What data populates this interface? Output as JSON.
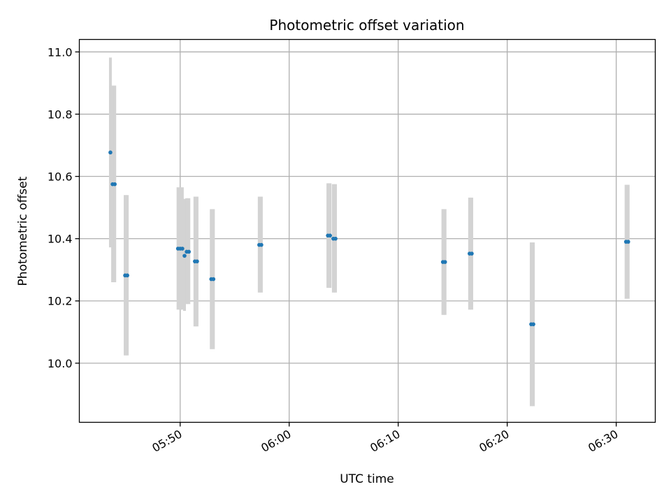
{
  "chart_data": {
    "type": "scatter",
    "title": "Photometric offset variation",
    "xlabel": "UTC time",
    "ylabel": "Photometric offset",
    "grid": true,
    "xlim": [
      "05:40:45",
      "06:33:35"
    ],
    "ylim": [
      9.81,
      11.04
    ],
    "xticks": [
      "05:50",
      "06:00",
      "06:10",
      "06:20",
      "06:30"
    ],
    "yticks": [
      10.0,
      10.2,
      10.4,
      10.6,
      10.8,
      11.0
    ],
    "ytick_labels": [
      "10.0",
      "10.2",
      "10.4",
      "10.6",
      "10.8",
      "11.0"
    ],
    "point_color": "#1f77b4",
    "errorbar_color": "#d3d3d3",
    "points": [
      {
        "t": "05:43:36",
        "y": 10.677,
        "ylow": 10.372,
        "yhigh": 10.982
      },
      {
        "t": "05:43:48",
        "y": 10.575,
        "ylow": 10.26,
        "yhigh": 10.892
      },
      {
        "t": "05:44:00",
        "y": 10.575,
        "ylow": 10.26,
        "yhigh": 10.892
      },
      {
        "t": "05:44:57",
        "y": 10.282,
        "ylow": 10.025,
        "yhigh": 10.54
      },
      {
        "t": "05:45:09",
        "y": 10.282,
        "ylow": 10.025,
        "yhigh": 10.54
      },
      {
        "t": "05:49:48",
        "y": 10.368,
        "ylow": 10.172,
        "yhigh": 10.565
      },
      {
        "t": "05:50:00",
        "y": 10.368,
        "ylow": 10.172,
        "yhigh": 10.565
      },
      {
        "t": "05:50:12",
        "y": 10.368,
        "ylow": 10.172,
        "yhigh": 10.565
      },
      {
        "t": "05:50:24",
        "y": 10.345,
        "ylow": 10.168,
        "yhigh": 10.528
      },
      {
        "t": "05:50:36",
        "y": 10.358,
        "ylow": 10.19,
        "yhigh": 10.53
      },
      {
        "t": "05:50:48",
        "y": 10.358,
        "ylow": 10.19,
        "yhigh": 10.53
      },
      {
        "t": "05:51:21",
        "y": 10.327,
        "ylow": 10.118,
        "yhigh": 10.535
      },
      {
        "t": "05:51:33",
        "y": 10.327,
        "ylow": 10.118,
        "yhigh": 10.535
      },
      {
        "t": "05:52:51",
        "y": 10.27,
        "ylow": 10.045,
        "yhigh": 10.495
      },
      {
        "t": "05:53:03",
        "y": 10.27,
        "ylow": 10.045,
        "yhigh": 10.495
      },
      {
        "t": "05:57:15",
        "y": 10.38,
        "ylow": 10.227,
        "yhigh": 10.535
      },
      {
        "t": "05:57:27",
        "y": 10.38,
        "ylow": 10.227,
        "yhigh": 10.535
      },
      {
        "t": "06:03:33",
        "y": 10.41,
        "ylow": 10.242,
        "yhigh": 10.578
      },
      {
        "t": "06:03:45",
        "y": 10.41,
        "ylow": 10.242,
        "yhigh": 10.578
      },
      {
        "t": "06:04:03",
        "y": 10.4,
        "ylow": 10.227,
        "yhigh": 10.575
      },
      {
        "t": "06:04:15",
        "y": 10.4,
        "ylow": 10.227,
        "yhigh": 10.575
      },
      {
        "t": "06:14:06",
        "y": 10.325,
        "ylow": 10.155,
        "yhigh": 10.495
      },
      {
        "t": "06:14:18",
        "y": 10.325,
        "ylow": 10.155,
        "yhigh": 10.495
      },
      {
        "t": "06:16:33",
        "y": 10.352,
        "ylow": 10.172,
        "yhigh": 10.532
      },
      {
        "t": "06:16:45",
        "y": 10.352,
        "ylow": 10.172,
        "yhigh": 10.532
      },
      {
        "t": "06:22:12",
        "y": 10.125,
        "ylow": 9.862,
        "yhigh": 10.388
      },
      {
        "t": "06:22:24",
        "y": 10.125,
        "ylow": 9.862,
        "yhigh": 10.388
      },
      {
        "t": "06:30:54",
        "y": 10.39,
        "ylow": 10.207,
        "yhigh": 10.573
      },
      {
        "t": "06:31:06",
        "y": 10.39,
        "ylow": 10.207,
        "yhigh": 10.573
      }
    ]
  }
}
